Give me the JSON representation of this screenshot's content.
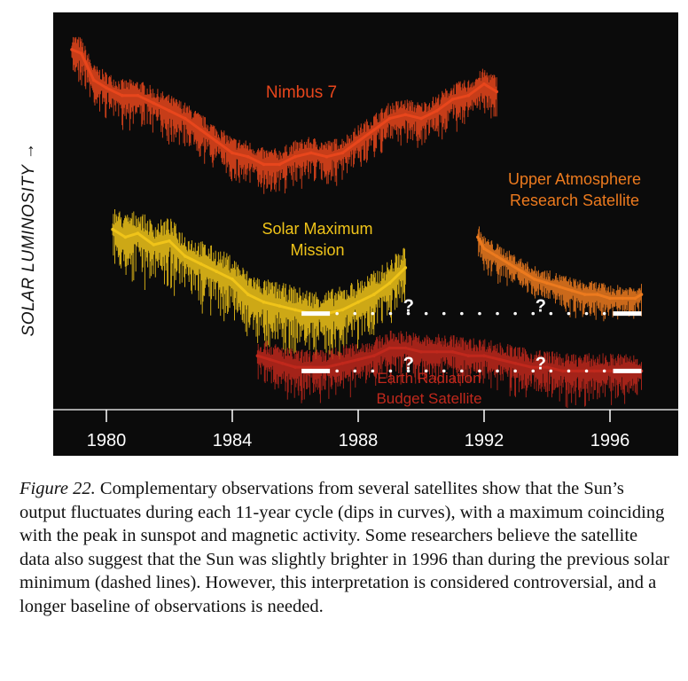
{
  "chart_data": {
    "type": "line",
    "ylabel": "SOLAR LUMINOSITY →",
    "xlim": [
      1978,
      1997.5
    ],
    "ticks": [
      "1980",
      "1984",
      "1988",
      "1992",
      "1996"
    ],
    "tick_values": [
      1980,
      1984,
      1988,
      1992,
      1996
    ],
    "grid": false,
    "series": [
      {
        "name": "Nimbus 7",
        "color": "#e8461c",
        "x": [
          1978.9,
          1979.2,
          1979.6,
          1980.0,
          1980.5,
          1981.0,
          1981.5,
          1982.0,
          1982.5,
          1983.0,
          1983.5,
          1984.0,
          1984.5,
          1985.0,
          1985.5,
          1986.0,
          1986.5,
          1987.0,
          1987.5,
          1988.0,
          1988.5,
          1989.0,
          1989.5,
          1990.0,
          1990.5,
          1991.0,
          1991.5,
          1992.0,
          1992.4
        ],
        "y": [
          9.4,
          9.3,
          8.6,
          8.4,
          8.2,
          8.2,
          8.0,
          7.8,
          7.6,
          7.3,
          7.0,
          6.7,
          6.6,
          6.4,
          6.4,
          6.6,
          6.7,
          6.6,
          6.7,
          7.0,
          7.3,
          7.6,
          7.7,
          7.6,
          7.8,
          8.1,
          8.2,
          8.5,
          8.3
        ]
      },
      {
        "name": "Solar Maximum Mission",
        "color": "#f0c419",
        "x": [
          1980.2,
          1980.6,
          1981.0,
          1981.5,
          1982.0,
          1982.5,
          1983.0,
          1983.5,
          1984.0,
          1984.5,
          1985.0,
          1985.5,
          1986.0,
          1986.5,
          1987.0,
          1987.5,
          1988.0,
          1988.5,
          1989.0,
          1989.5
        ],
        "y": [
          4.7,
          4.5,
          4.6,
          4.3,
          4.4,
          4.0,
          3.8,
          3.6,
          3.4,
          3.0,
          2.8,
          2.7,
          2.6,
          2.5,
          2.5,
          2.6,
          2.8,
          3.0,
          3.3,
          3.7
        ]
      },
      {
        "name": "Upper Atmosphere Research Satellite",
        "color": "#ec7a1e",
        "x": [
          1991.8,
          1992.0,
          1992.4,
          1992.8,
          1993.2,
          1993.6,
          1994.0,
          1994.4,
          1994.8,
          1995.2,
          1995.6,
          1996.0,
          1996.4,
          1996.8,
          1997.0
        ],
        "y": [
          4.5,
          4.2,
          4.0,
          3.8,
          3.6,
          3.4,
          3.3,
          3.2,
          3.1,
          3.0,
          3.0,
          2.9,
          2.9,
          2.9,
          3.0
        ]
      },
      {
        "name": "Earth Radiation Budget Satellite",
        "color": "#c0281c",
        "x": [
          1984.8,
          1985.2,
          1985.6,
          1986.0,
          1986.5,
          1987.0,
          1987.5,
          1988.0,
          1988.5,
          1989.0,
          1989.5,
          1990.0,
          1990.5,
          1991.0,
          1991.5,
          1992.0,
          1992.5,
          1993.0,
          1993.5,
          1994.0,
          1994.5,
          1995.0,
          1995.5,
          1996.0,
          1996.5,
          1997.0
        ],
        "y": [
          1.4,
          1.3,
          1.2,
          1.1,
          1.1,
          1.1,
          1.2,
          1.3,
          1.4,
          1.6,
          1.6,
          1.5,
          1.5,
          1.5,
          1.4,
          1.4,
          1.3,
          1.2,
          1.1,
          1.1,
          1.0,
          1.0,
          1.0,
          1.0,
          1.0,
          1.0
        ]
      }
    ],
    "annotations": [
      {
        "text": "Nimbus 7",
        "color": "#e8461c"
      },
      {
        "text": "Solar Maximum",
        "color": "#f0c419"
      },
      {
        "text": "Mission",
        "color": "#f0c419"
      },
      {
        "text": "Upper Atmosphere",
        "color": "#ec7a1e"
      },
      {
        "text": "Research Satellite",
        "color": "#ec7a1e"
      },
      {
        "text": "Earth Radiation",
        "color": "#c0281c"
      },
      {
        "text": "Budget Satellite",
        "color": "#c0281c"
      }
    ],
    "dashed_lines": [
      {
        "x": [
          1986.2,
          1997.0
        ],
        "y": 2.5,
        "question_marks_at": [
          1989.6,
          1993.8
        ]
      },
      {
        "x": [
          1986.2,
          1997.0
        ],
        "y": 1.0,
        "question_marks_at": [
          1989.6,
          1993.8
        ]
      }
    ],
    "question_mark": "?"
  },
  "caption": {
    "figure_label": "Figure 22.",
    "text": " Complementary observations from several satellites show that the Sun’s output fluctuates during each 11-year cycle (dips in curves), with a maximum coinciding with the peak in sunspot and magnetic activity. Some researchers believe the satellite data also suggest that the Sun was slightly brighter in 1996 than during the previous solar minimum (dashed lines). However, this interpretation is considered controversial, and a longer baseline of observations is needed."
  },
  "colors": {
    "background": "#0b0b0b",
    "axis": "#ffffff",
    "dash": "#ffffff"
  }
}
